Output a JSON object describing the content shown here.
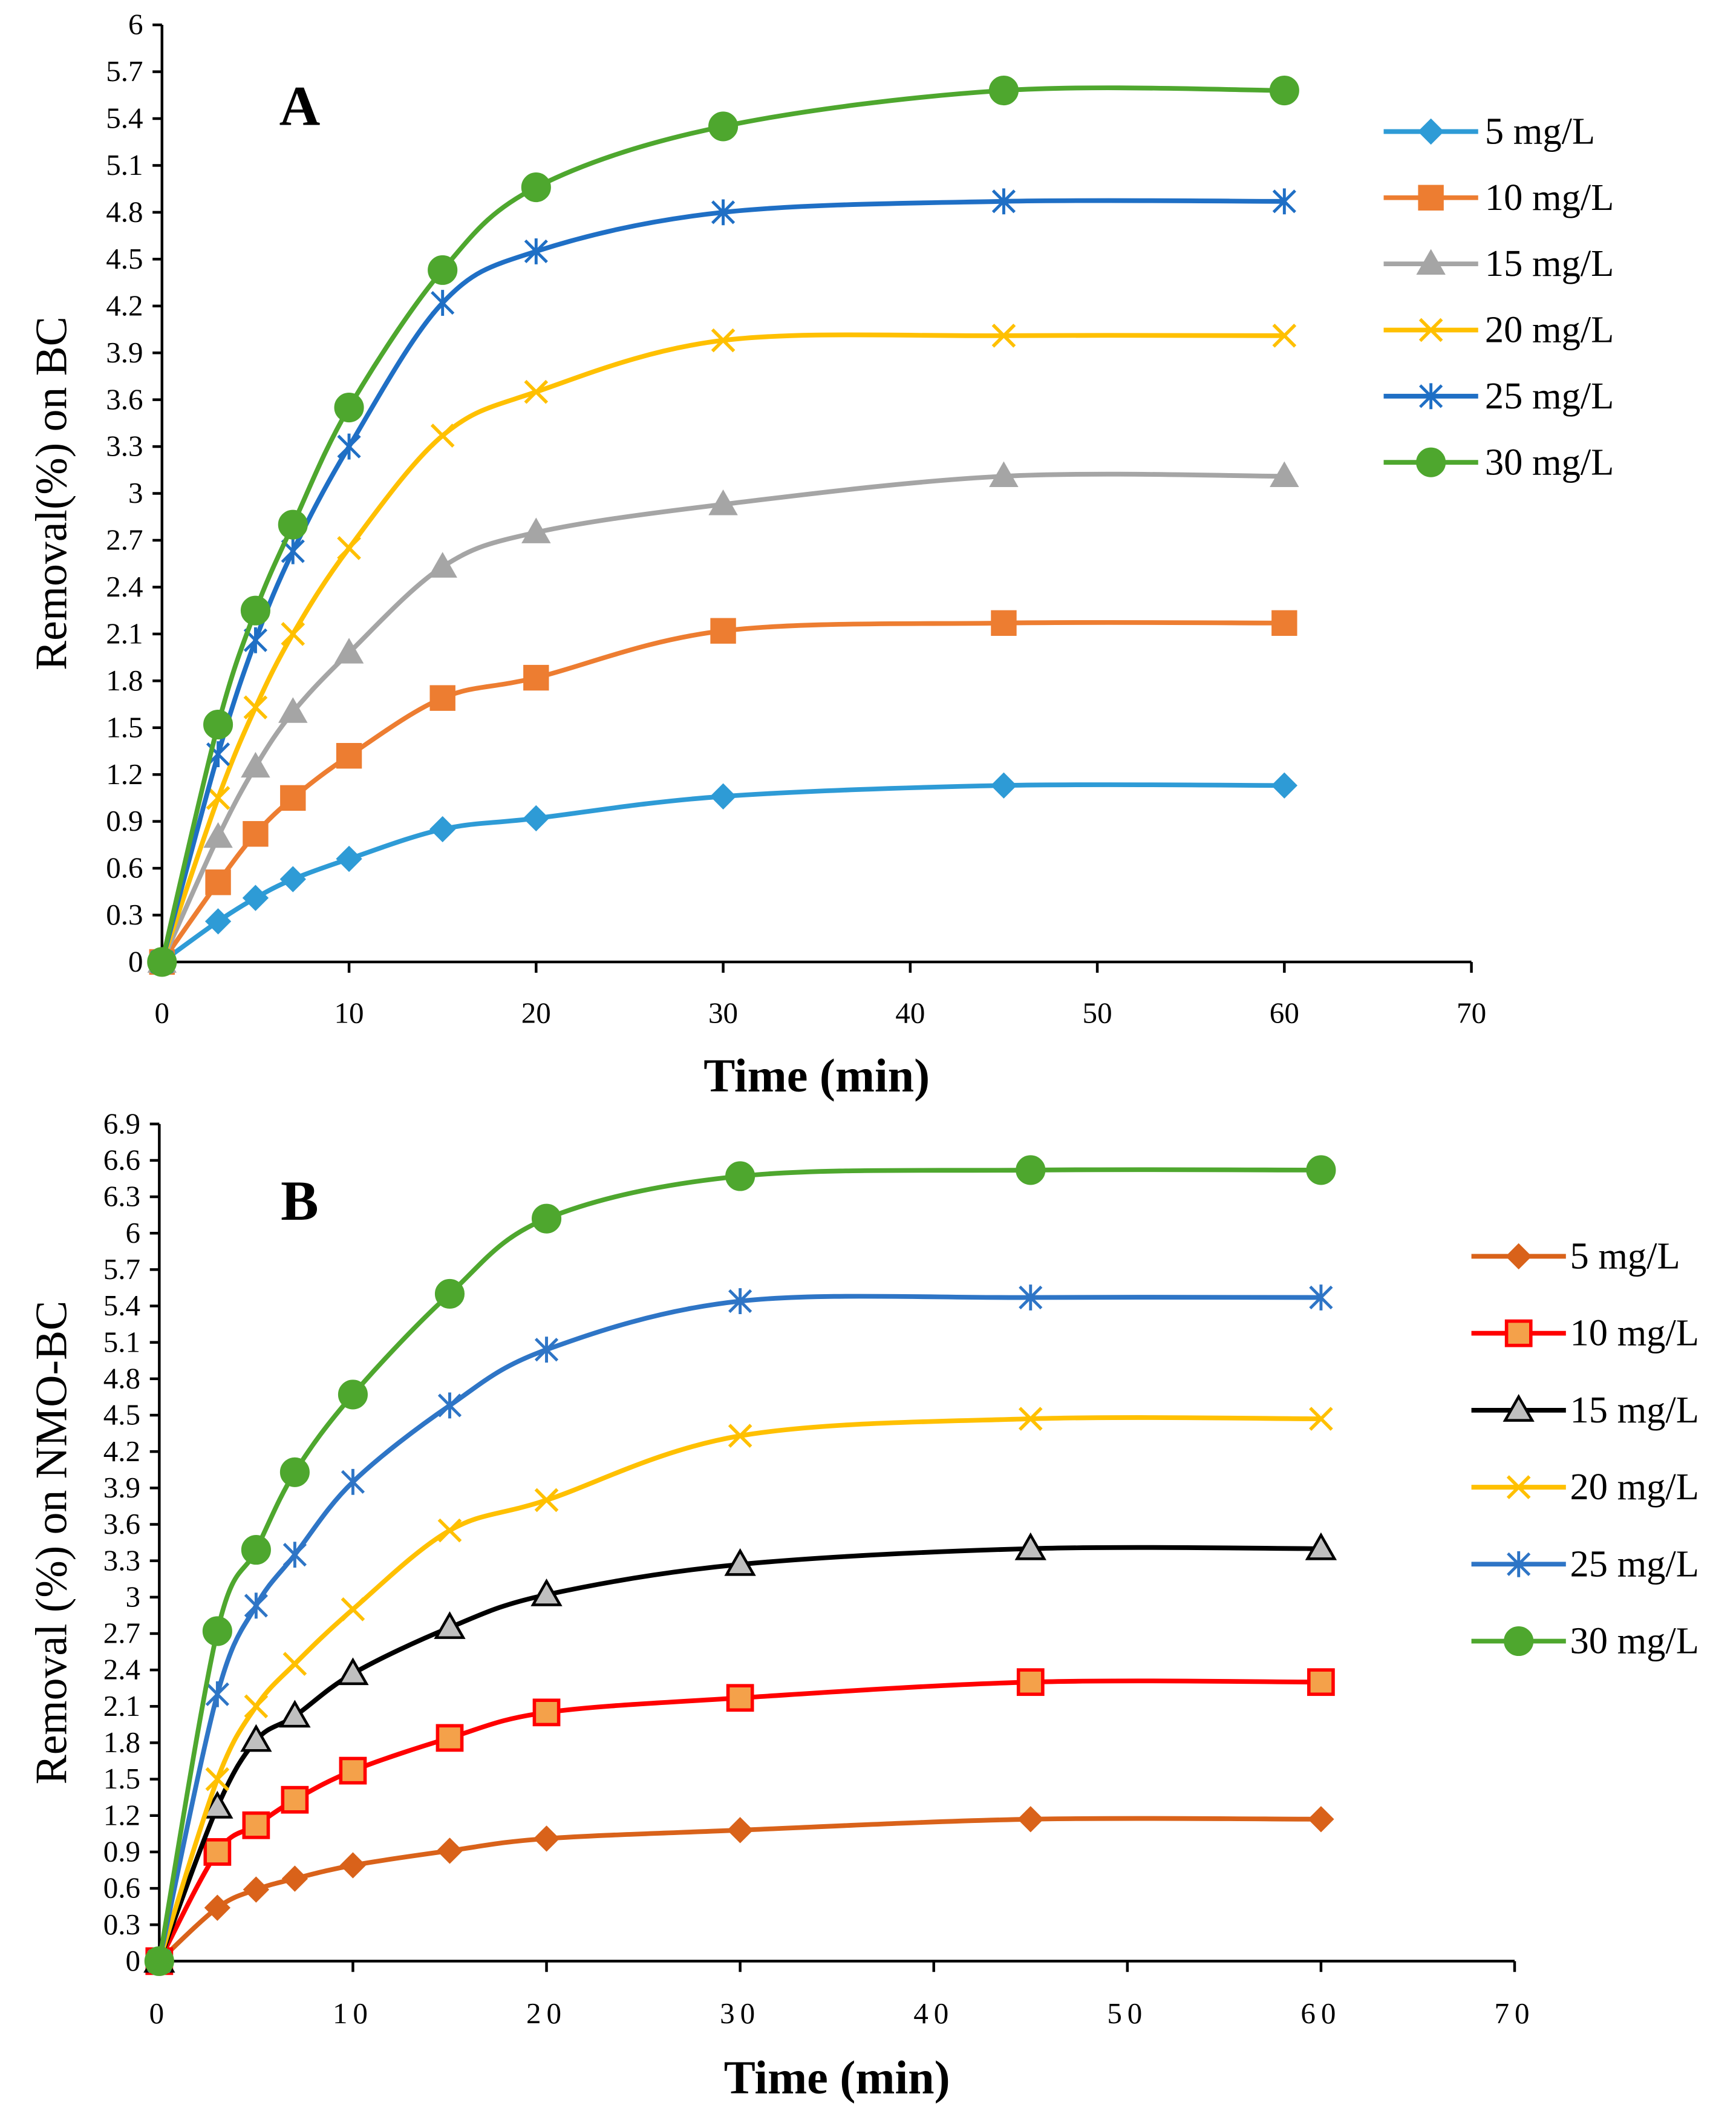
{
  "chart_data": [
    {
      "type": "line",
      "panel_label": "A",
      "xlabel": "Time (min)",
      "ylabel": "Removal(%) on BC",
      "xlim": [
        0,
        70
      ],
      "ylim": [
        0,
        6
      ],
      "xticks": [
        "0",
        "10",
        "20",
        "30",
        "40",
        "50",
        "60",
        "70"
      ],
      "yticks": [
        "0",
        "0.3",
        "0.6",
        "0.9",
        "1.2",
        "1.5",
        "1.8",
        "2.1",
        "2.4",
        "2.7",
        "3",
        "3.3",
        "3.6",
        "3.9",
        "4.2",
        "4.5",
        "4.8",
        "5.1",
        "5.4",
        "5.7",
        "6"
      ],
      "grid": false,
      "legend_position": "right",
      "x": [
        0,
        3,
        5,
        7,
        10,
        15,
        20,
        30,
        45,
        60
      ],
      "series": [
        {
          "name": "5 mg/L",
          "marker": "diamond",
          "color": "#2E9BD6",
          "fill": "#2E9BD6",
          "values": [
            0,
            0.26,
            0.41,
            0.53,
            0.66,
            0.85,
            0.92,
            1.06,
            1.13,
            1.13
          ]
        },
        {
          "name": "10 mg/L",
          "marker": "square",
          "color": "#ED7D31",
          "fill": "#ED7D31",
          "values": [
            0,
            0.51,
            0.82,
            1.05,
            1.32,
            1.69,
            1.82,
            2.12,
            2.17,
            2.17
          ]
        },
        {
          "name": "15 mg/L",
          "marker": "triangle",
          "color": "#A5A5A5",
          "fill": "#A5A5A5",
          "values": [
            0,
            0.8,
            1.25,
            1.6,
            1.98,
            2.53,
            2.75,
            2.93,
            3.11,
            3.11
          ]
        },
        {
          "name": "20 mg/L",
          "marker": "x",
          "color": "#FFC000",
          "fill": "#FFC000",
          "values": [
            0,
            1.05,
            1.63,
            2.1,
            2.65,
            3.37,
            3.65,
            3.98,
            4.01,
            4.01
          ]
        },
        {
          "name": "25 mg/L",
          "marker": "star",
          "color": "#1F6FC5",
          "fill": "#1F6FC5",
          "values": [
            0,
            1.33,
            2.06,
            2.63,
            3.3,
            4.22,
            4.55,
            4.8,
            4.87,
            4.87
          ]
        },
        {
          "name": "30 mg/L",
          "marker": "circle",
          "color": "#4EA72E",
          "fill": "#4EA72E",
          "values": [
            0,
            1.52,
            2.25,
            2.8,
            3.55,
            4.43,
            4.96,
            5.35,
            5.58,
            5.58
          ]
        }
      ]
    },
    {
      "type": "line",
      "panel_label": "B",
      "xlabel": "Time (min)",
      "ylabel": "Removal (%) on NMO-BC",
      "xlim": [
        0,
        70
      ],
      "ylim": [
        0,
        6.9
      ],
      "xticks": [
        "0",
        "10",
        "20",
        "30",
        "40",
        "50",
        "60",
        "70"
      ],
      "yticks": [
        "0",
        "0.3",
        "0.6",
        "0.9",
        "1.2",
        "1.5",
        "1.8",
        "2.1",
        "2.4",
        "2.7",
        "3",
        "3.3",
        "3.6",
        "3.9",
        "4.2",
        "4.5",
        "4.8",
        "5.1",
        "5.4",
        "5.7",
        "6",
        "6.3",
        "6.6",
        "6.9"
      ],
      "grid": false,
      "legend_position": "right",
      "x": [
        0,
        3,
        5,
        7,
        10,
        15,
        20,
        30,
        45,
        60
      ],
      "series": [
        {
          "name": "5 mg/L",
          "marker": "diamond",
          "color": "#D9621A",
          "fill": "#D9621A",
          "values": [
            0,
            0.44,
            0.59,
            0.68,
            0.79,
            0.91,
            1.01,
            1.08,
            1.17,
            1.17
          ]
        },
        {
          "name": "10 mg/L",
          "marker": "square",
          "color": "#FF0000",
          "fill": "#F4A14A",
          "values": [
            0,
            0.9,
            1.12,
            1.33,
            1.57,
            1.84,
            2.05,
            2.17,
            2.3,
            2.3
          ]
        },
        {
          "name": "15 mg/L",
          "marker": "triangle",
          "color": "#000000",
          "fill": "#BFBFBF",
          "values": [
            0,
            1.27,
            1.82,
            2.02,
            2.37,
            2.75,
            3.02,
            3.27,
            3.4,
            3.4
          ]
        },
        {
          "name": "20 mg/L",
          "marker": "x",
          "color": "#FFC000",
          "fill": "#FFC000",
          "values": [
            0,
            1.5,
            2.1,
            2.45,
            2.9,
            3.55,
            3.8,
            4.33,
            4.47,
            4.47
          ]
        },
        {
          "name": "25 mg/L",
          "marker": "star",
          "color": "#2E75C6",
          "fill": "#2E75C6",
          "values": [
            0,
            2.2,
            2.93,
            3.35,
            3.95,
            4.58,
            5.04,
            5.44,
            5.47,
            5.47
          ]
        },
        {
          "name": "30 mg/L",
          "marker": "circle",
          "color": "#4EA72E",
          "fill": "#4EA72E",
          "values": [
            0,
            2.72,
            3.39,
            4.03,
            4.67,
            5.5,
            6.12,
            6.47,
            6.52,
            6.52
          ]
        }
      ]
    }
  ]
}
